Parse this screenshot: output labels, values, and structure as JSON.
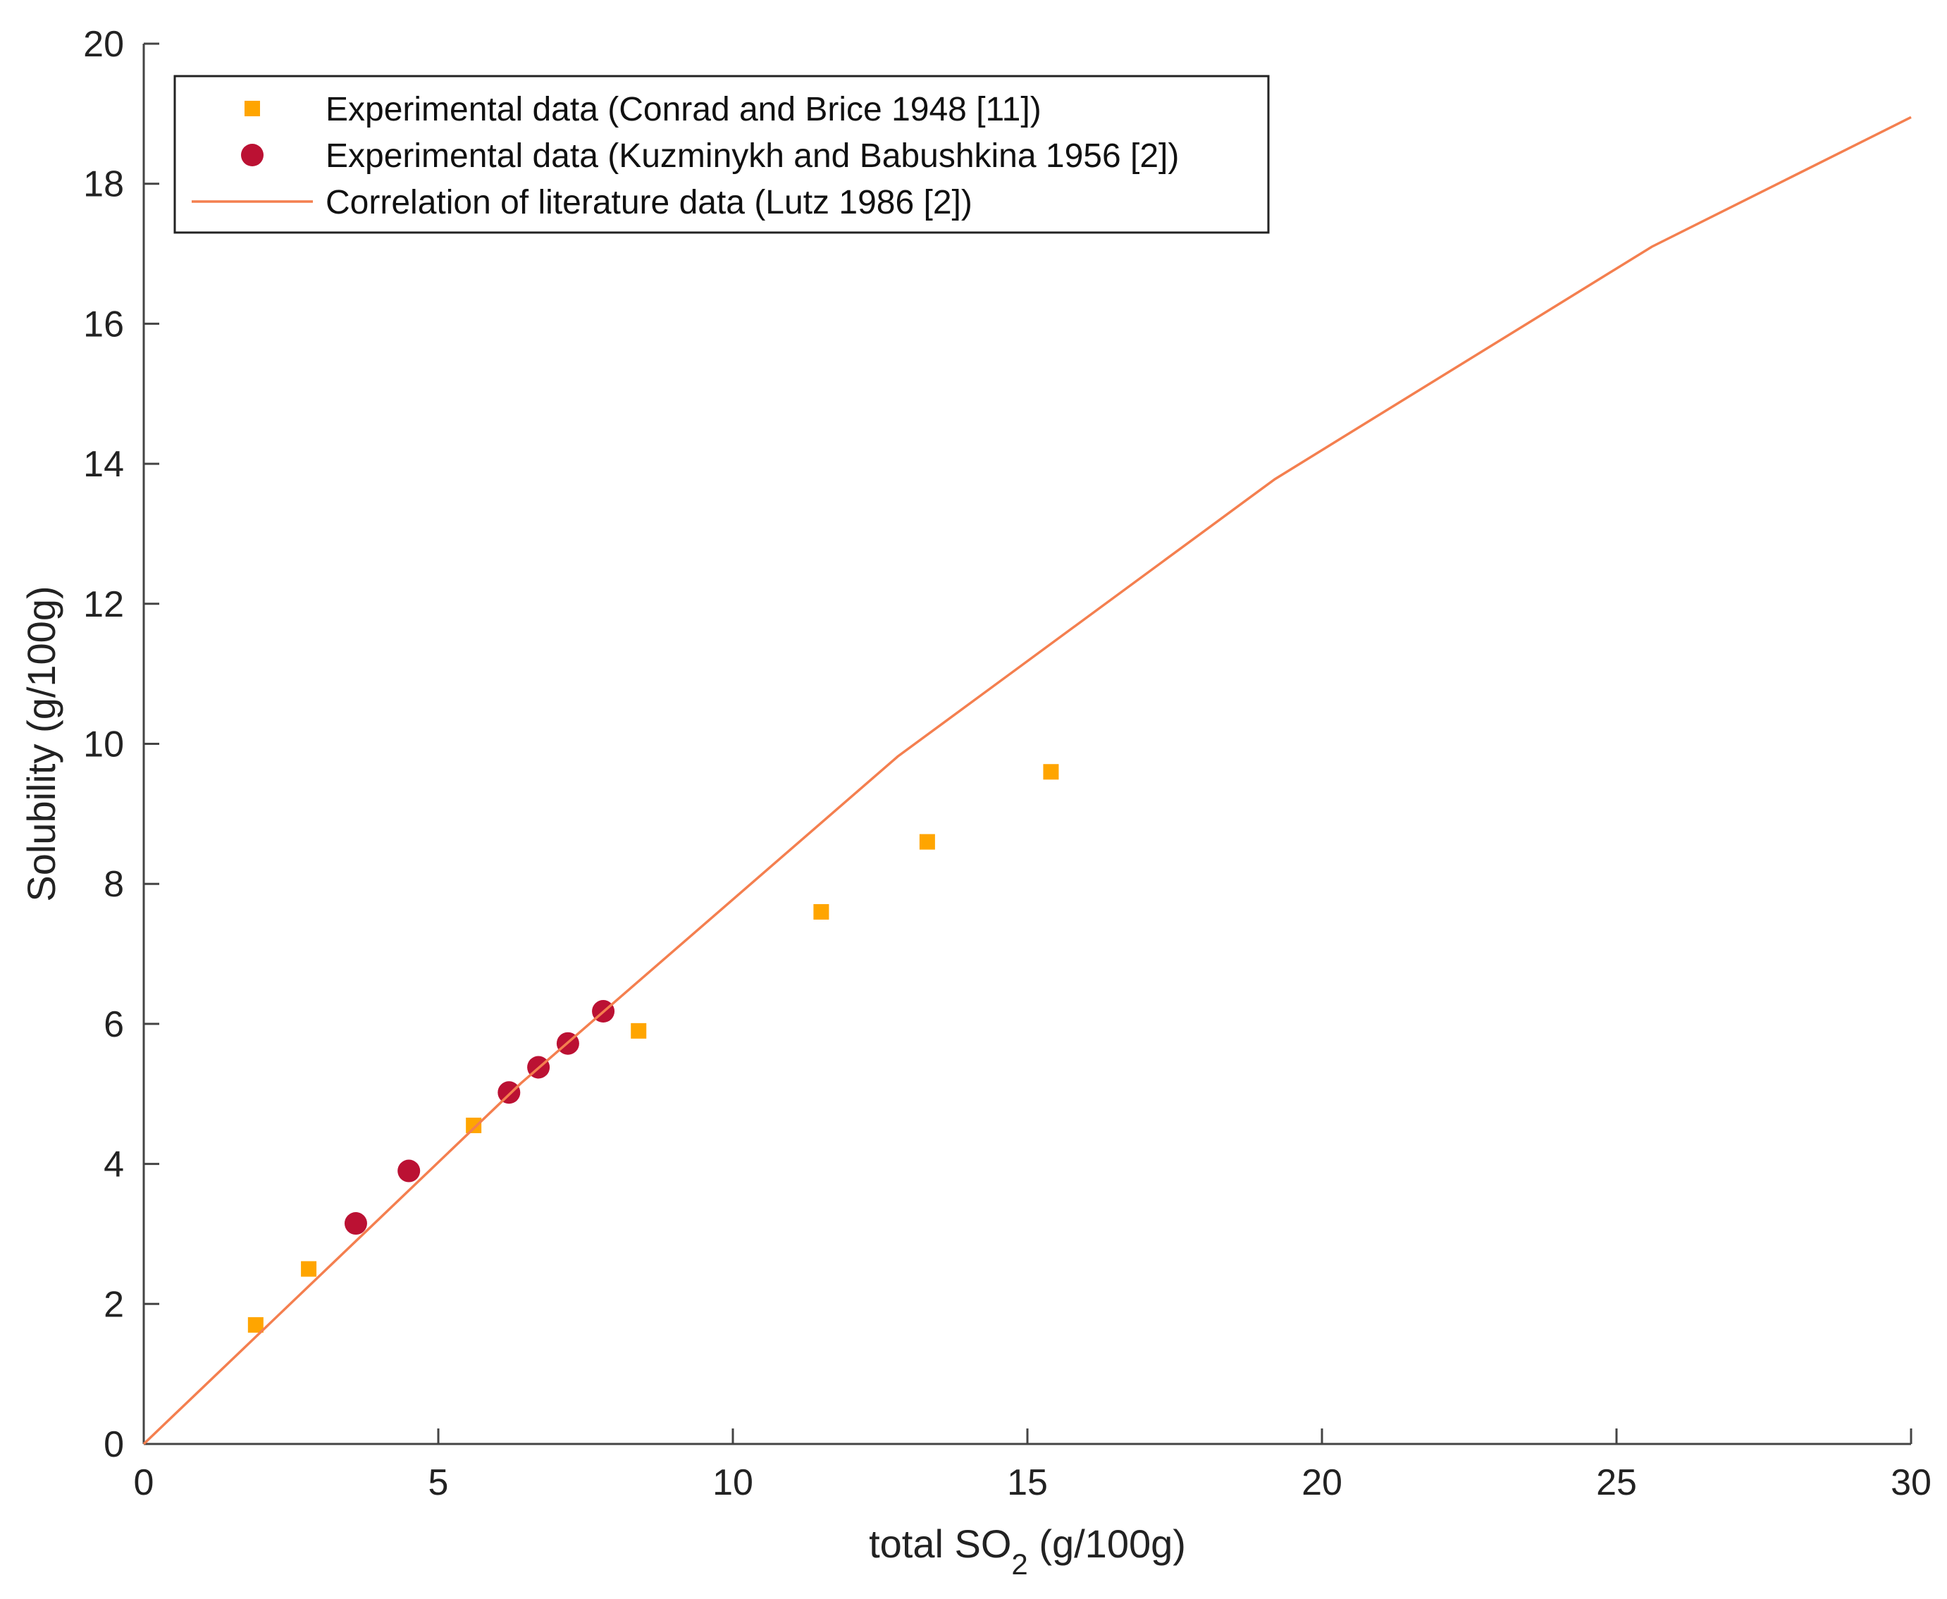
{
  "chart_data": {
    "type": "scatter",
    "title": "",
    "xlabel": {
      "main": "total SO",
      "sub": "2",
      "unit": " (g/100g)"
    },
    "ylabel": "Solubility (g/100g)",
    "xlim": [
      0,
      30
    ],
    "ylim": [
      0,
      20
    ],
    "x_ticks": [
      0,
      5,
      10,
      15,
      20,
      25,
      30
    ],
    "y_ticks": [
      0,
      2,
      4,
      6,
      8,
      10,
      12,
      14,
      16,
      18,
      20
    ],
    "grid": false,
    "legend_position": "top-left",
    "series": [
      {
        "name": "Experimental data (Conrad and Brice 1948 [11])",
        "kind": "scatter",
        "marker": "square",
        "color": "#FFA500",
        "x": [
          1.9,
          2.8,
          5.6,
          8.4,
          11.5,
          13.3,
          15.4
        ],
        "y": [
          1.7,
          2.5,
          4.55,
          5.9,
          7.6,
          8.6,
          9.6
        ]
      },
      {
        "name": "Experimental data (Kuzminykh and Babushkina 1956 [2])",
        "kind": "scatter",
        "marker": "circle",
        "color": "#BB1133",
        "x": [
          3.6,
          4.5,
          6.2,
          6.7,
          7.2,
          7.8
        ],
        "y": [
          3.15,
          3.9,
          5.02,
          5.38,
          5.72,
          6.18
        ]
      },
      {
        "name": "Correlation of literature data (Lutz 1986 [2])",
        "kind": "line",
        "color": "#F47F4F",
        "x": [
          0,
          6.4,
          12.8,
          19.2,
          25.6,
          30
        ],
        "y": [
          0,
          5.15,
          9.82,
          13.78,
          17.1,
          18.95
        ]
      }
    ]
  }
}
